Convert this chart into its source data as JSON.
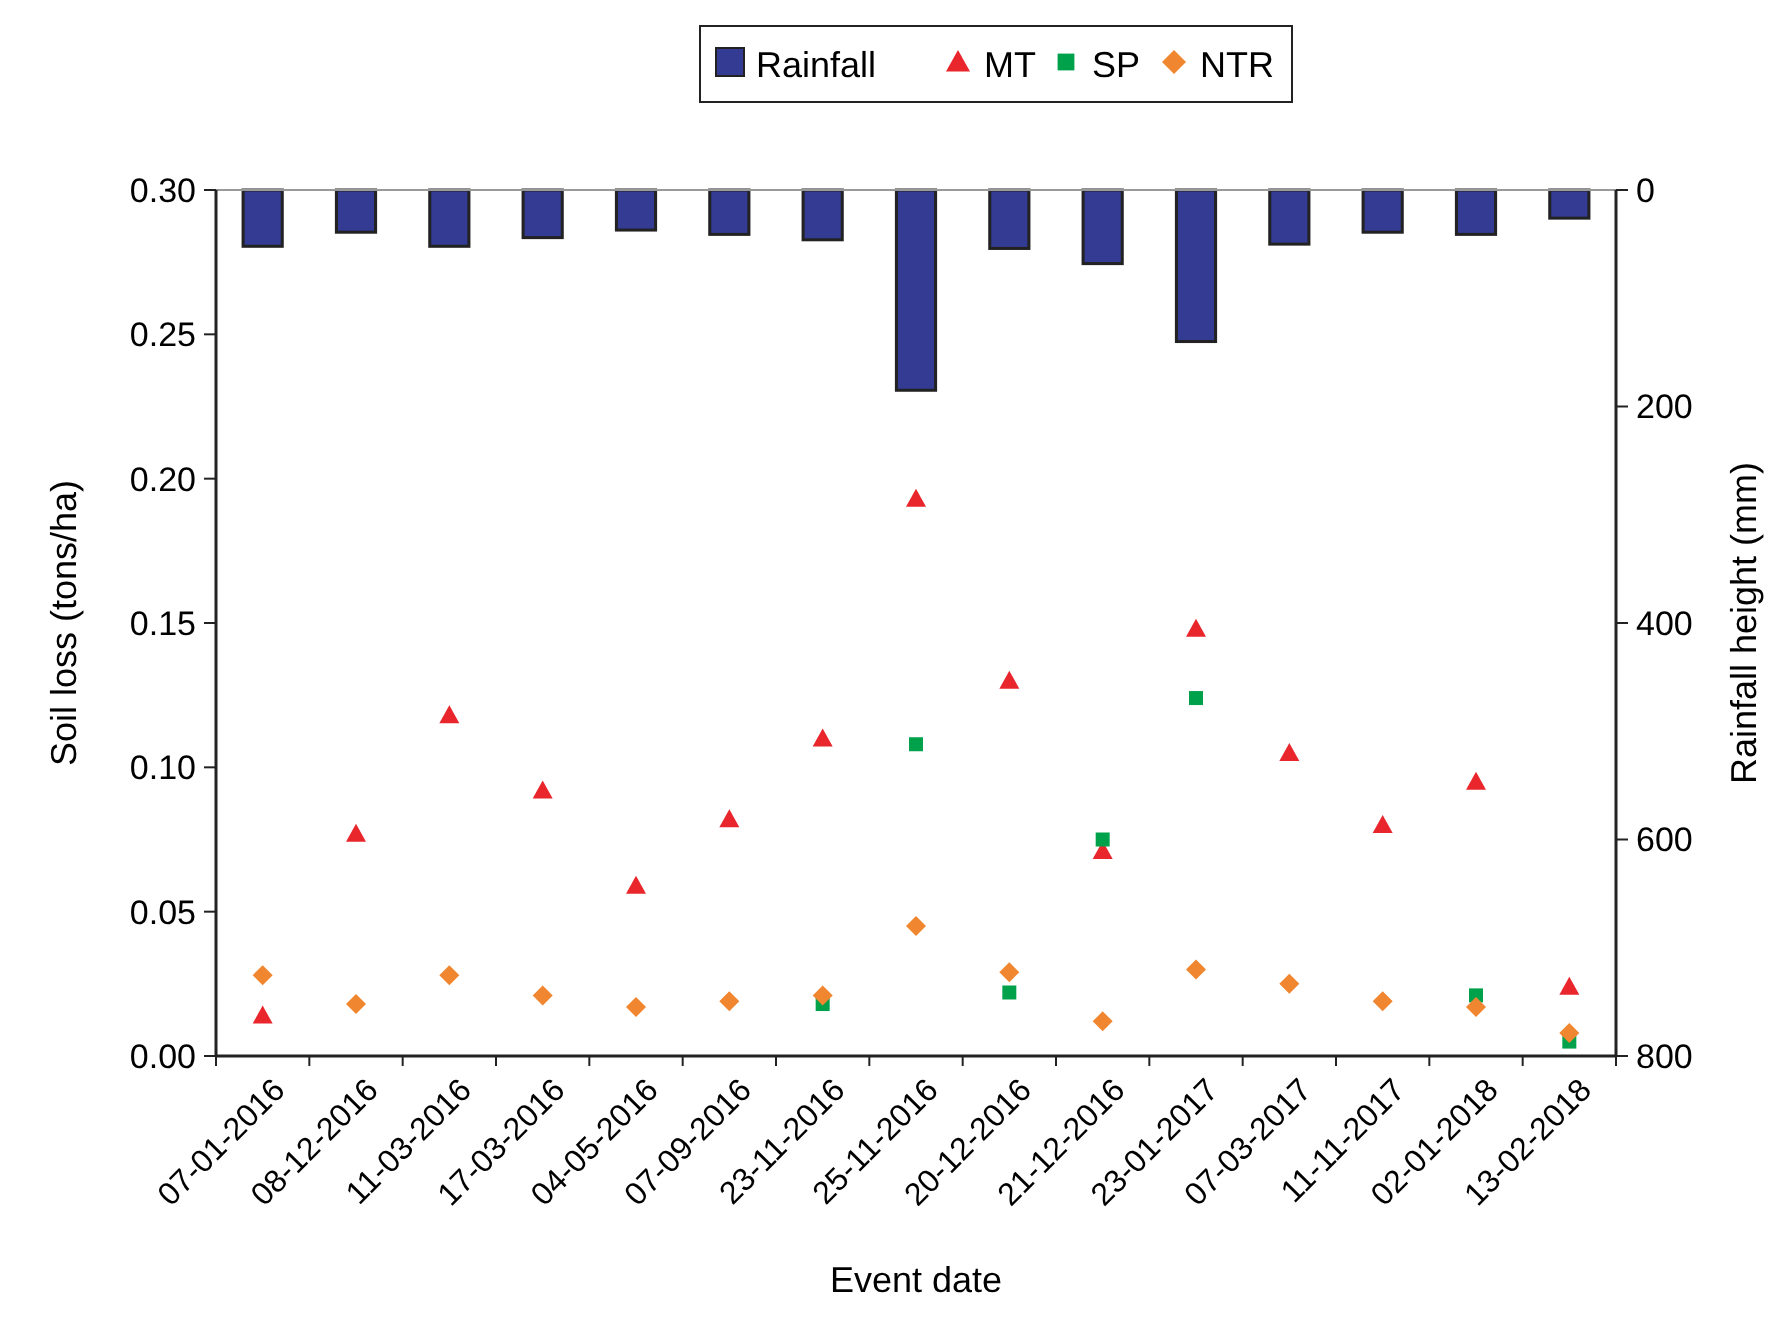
{
  "chart_data": {
    "type": "scatter",
    "xlabel": "Event date",
    "ylabel": "Soil loss (tons/ha)",
    "y2label": "Rainfall height (mm)",
    "categories": [
      "07-01-2016",
      "08-12-2016",
      "11-03-2016",
      "17-03-2016",
      "04-05-2016",
      "07-09-2016",
      "23-11-2016",
      "25-11-2016",
      "20-12-2016",
      "21-12-2016",
      "23-01-2017",
      "07-03-2017",
      "11-11-2017",
      "02-01-2018",
      "13-02-2018"
    ],
    "series": [
      {
        "name": "Rainfall",
        "type": "bar",
        "axis": "y2",
        "color": "#333b93",
        "values": [
          52,
          39,
          52,
          44,
          37,
          41,
          46,
          185,
          54,
          68,
          140,
          50,
          39,
          41,
          26
        ]
      },
      {
        "name": "MT",
        "marker": "triangle",
        "color": "#e8262c",
        "values": [
          0.014,
          0.077,
          0.118,
          0.092,
          0.059,
          0.082,
          0.11,
          0.193,
          0.13,
          0.071,
          0.148,
          0.105,
          0.08,
          0.095,
          0.024
        ]
      },
      {
        "name": "SP",
        "marker": "square",
        "color": "#00a14b",
        "values": [
          null,
          null,
          null,
          null,
          null,
          null,
          0.018,
          0.108,
          0.022,
          0.075,
          0.124,
          null,
          null,
          0.021,
          0.005
        ]
      },
      {
        "name": "NTR",
        "marker": "diamond",
        "color": "#f0862f",
        "values": [
          0.028,
          0.018,
          0.028,
          0.021,
          0.017,
          0.019,
          0.021,
          0.045,
          0.029,
          0.012,
          0.03,
          0.025,
          0.019,
          0.017,
          0.008
        ]
      }
    ],
    "ylim": [
      0,
      0.3
    ],
    "yticks": [
      {
        "value": 0,
        "label": "0.00"
      },
      {
        "value": 0.05,
        "label": "0.05"
      },
      {
        "value": 0.1,
        "label": "0.10"
      },
      {
        "value": 0.15,
        "label": "0.15"
      },
      {
        "value": 0.2,
        "label": "0.20"
      },
      {
        "value": 0.25,
        "label": "0.25"
      },
      {
        "value": 0.3,
        "label": "0.30"
      }
    ],
    "y2lim": [
      800,
      0
    ],
    "y2ticks": [
      0,
      200,
      400,
      600,
      800
    ],
    "grid": false,
    "legend": "top"
  }
}
